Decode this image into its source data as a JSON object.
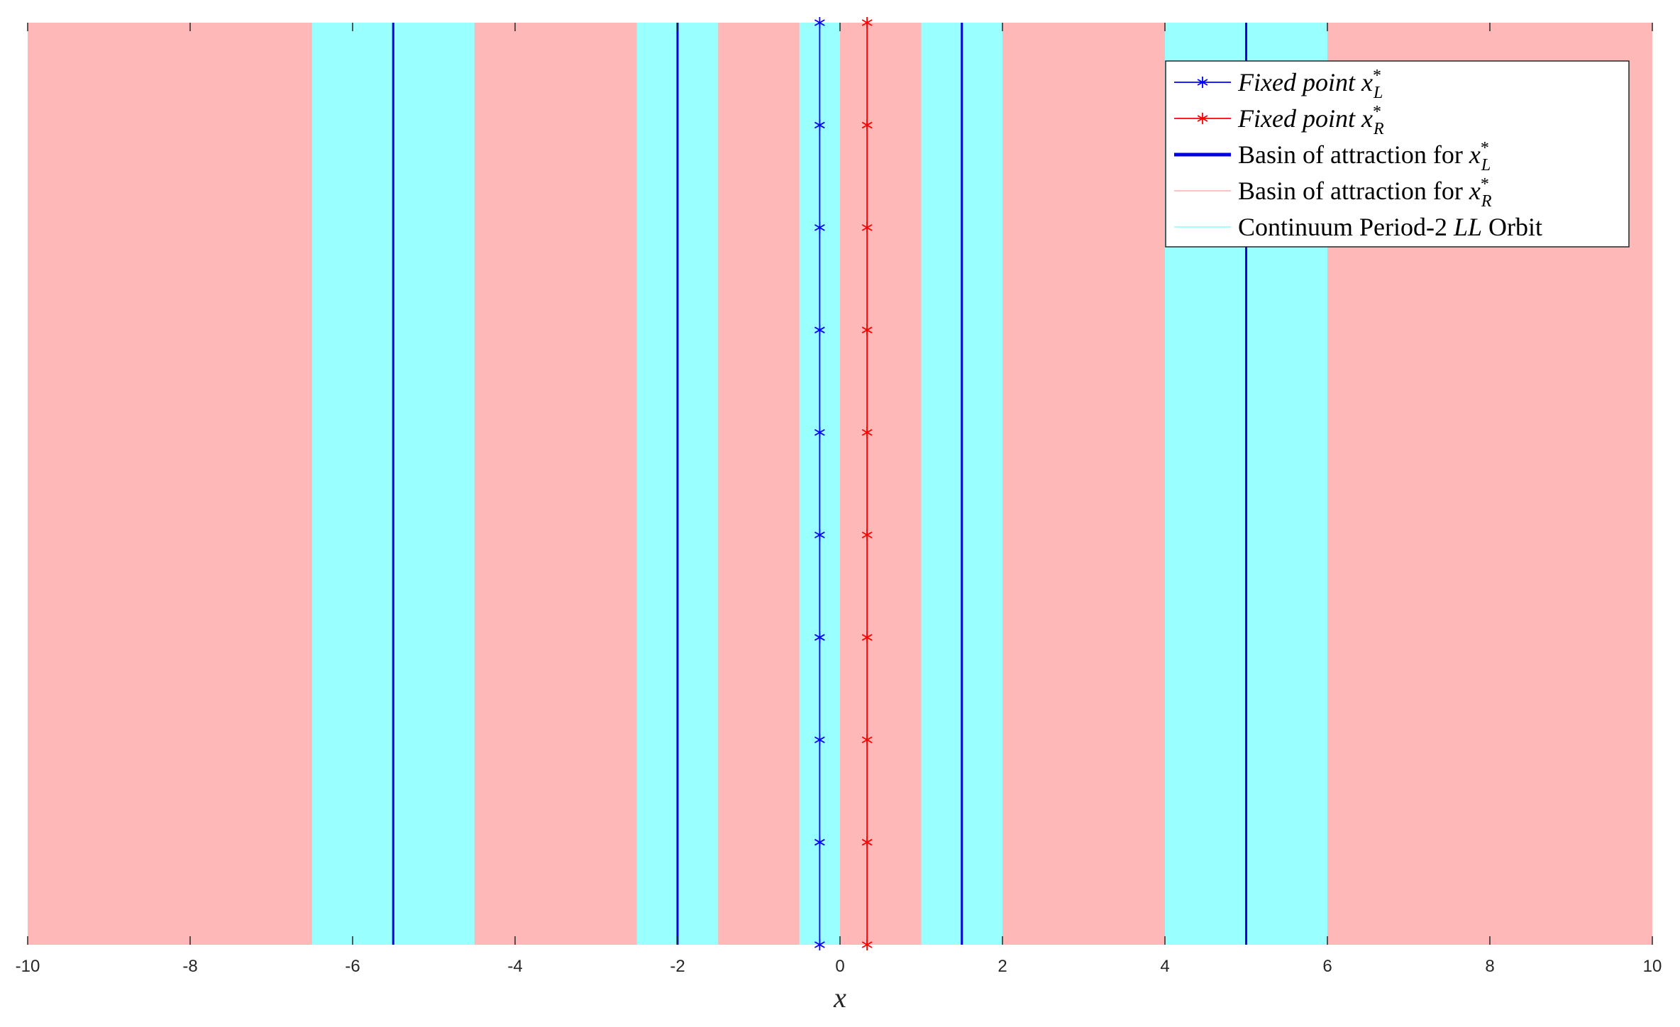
{
  "chart_data": {
    "type": "line",
    "xlim": [
      -10,
      10
    ],
    "ylim": [
      0,
      9
    ],
    "xlabel": "x",
    "x_ticks": [
      -10,
      -8,
      -6,
      -4,
      -2,
      0,
      2,
      4,
      6,
      8,
      10
    ],
    "y_ticks_visible": false,
    "grid": false,
    "basin_R_color": "#ffb8b8",
    "period2_color": "#99ffff",
    "background_basin": "basin_R",
    "continuum_period2_intervals": [
      [
        -6.5,
        -4.5
      ],
      [
        -2.5,
        -1.5
      ],
      [
        -0.5,
        0
      ],
      [
        1,
        2
      ],
      [
        4,
        6
      ]
    ],
    "basin_L_lines": {
      "x": [
        -5.5,
        -2,
        1.5,
        5
      ],
      "color": "#0000e0"
    },
    "series": [
      {
        "key": "fixed_point_L",
        "x": -0.25,
        "y": [
          0,
          1,
          2,
          3,
          4,
          5,
          6,
          7,
          8,
          9
        ],
        "marker": "asterisk",
        "color": "#0000ff"
      },
      {
        "key": "fixed_point_R",
        "x": 0.333,
        "y": [
          0,
          1,
          2,
          3,
          4,
          5,
          6,
          7,
          8,
          9
        ],
        "marker": "asterisk",
        "color": "#ff0000"
      }
    ],
    "legend": {
      "placement": "top-right",
      "entries": [
        {
          "key": "fixed_point_L",
          "style": "line-marker",
          "color": "#0000ff",
          "text_italic": "Fixed point",
          "var": "x",
          "sup": "*",
          "sub": "L"
        },
        {
          "key": "fixed_point_R",
          "style": "line-marker",
          "color": "#ff0000",
          "text_italic": "Fixed point",
          "var": "x",
          "sup": "*",
          "sub": "R"
        },
        {
          "key": "basin_L",
          "style": "thick-line",
          "color": "#0000e0",
          "text": "Basin of attraction for",
          "var": "x",
          "sup": "*",
          "sub": "L"
        },
        {
          "key": "basin_R",
          "style": "thin-line",
          "color": "#ffb8b8",
          "text": "Basin of attraction for",
          "var": "x",
          "sup": "*",
          "sub": "R"
        },
        {
          "key": "continuum_period2",
          "style": "thin-line",
          "color": "#99ffff",
          "text": "Continuum Period-2",
          "italic_mid": "LL",
          "text_after": "Orbit"
        }
      ]
    }
  }
}
